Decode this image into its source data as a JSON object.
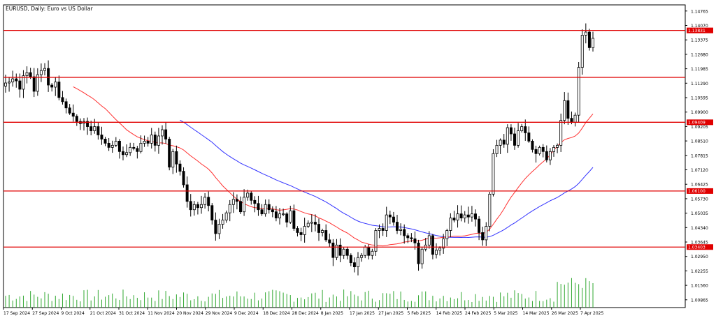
{
  "chart_data": {
    "type": "candlestick",
    "title": "EURUSD, Daily: Euro vs US Dollar",
    "y_ticks": [
      "1.14765",
      "1.14070",
      "1.13375",
      "1.12680",
      "1.11985",
      "1.11290",
      "1.10595",
      "1.09900",
      "1.09205",
      "1.08510",
      "1.07815",
      "1.07120",
      "1.06425",
      "1.05730",
      "1.05035",
      "1.04340",
      "1.03645",
      "1.02950",
      "1.02255",
      "1.01560",
      "1.00865"
    ],
    "ylim": [
      1.0049,
      1.1506
    ],
    "x_ticks": [
      "17 Sep 2024",
      "27 Sep 2024",
      "9 Oct 2024",
      "21 Oct 2024",
      "31 Oct 2024",
      "11 Nov 2024",
      "20 Nov 2024",
      "29 Nov 2024",
      "9 Dec 2024",
      "18 Dec 2024",
      "28 Dec 2024",
      "8 Jan 2025",
      "17 Jan 2025",
      "27 Jan 2025",
      "5 Feb 2025",
      "14 Feb 2025",
      "24 Feb 2025",
      "5 Mar 2025",
      "14 Mar 2025",
      "26 Mar 2025",
      "7 Apr 2025"
    ],
    "levels": [
      {
        "value": 1.13831,
        "label": "1.13831",
        "color": "#e00000"
      },
      {
        "value": 1.11575,
        "label": "",
        "color": "#e00000"
      },
      {
        "value": 1.09409,
        "label": "1.09409",
        "color": "#e00000"
      },
      {
        "value": 1.061,
        "label": "1.06100",
        "color": "#e00000"
      },
      {
        "value": 1.03403,
        "label": "1.03403",
        "color": "#e00000"
      }
    ],
    "ohlc_close": [
      1.113,
      1.1135,
      1.115,
      1.114,
      1.11,
      1.1165,
      1.118,
      1.116,
      1.109,
      1.117,
      1.119,
      1.12,
      1.112,
      1.111,
      1.1135,
      1.106,
      1.104,
      1.101,
      1.0985,
      1.097,
      1.0945,
      1.0935,
      1.0945,
      1.092,
      1.09,
      1.092,
      1.088,
      1.086,
      1.084,
      1.082,
      1.083,
      1.085,
      1.08,
      1.0785,
      1.0795,
      1.082,
      1.0815,
      1.08,
      1.084,
      1.085,
      1.084,
      1.088,
      1.083,
      1.0875,
      1.0905,
      1.086,
      1.0725,
      1.08,
      1.074,
      1.0705,
      1.064,
      1.056,
      1.052,
      1.0545,
      1.053,
      1.0545,
      1.058,
      1.054,
      1.047,
      1.0405,
      1.045,
      1.047,
      1.0505,
      1.0545,
      1.057,
      1.056,
      1.051,
      1.058,
      1.06,
      1.0565,
      1.055,
      1.052,
      1.05,
      1.0545,
      1.052,
      1.051,
      1.048,
      1.05,
      1.05,
      1.046,
      1.0515,
      1.043,
      1.041,
      1.04,
      1.044,
      1.0455,
      1.046,
      1.045,
      1.041,
      1.042,
      1.0375,
      1.036,
      1.029,
      1.035,
      1.03,
      1.033,
      1.03,
      1.0265,
      1.0245,
      1.029,
      1.03,
      1.034,
      1.03,
      1.032,
      1.042,
      1.043,
      1.042,
      1.0495,
      1.0485,
      1.046,
      1.042,
      1.0425,
      1.0395,
      1.0385,
      1.038,
      1.036,
      1.026,
      1.033,
      1.035,
      1.0395,
      1.0305,
      1.0325,
      1.0335,
      1.038,
      1.042,
      1.048,
      1.047,
      1.05,
      1.048,
      1.0495,
      1.0485,
      1.05,
      1.0475,
      1.041,
      1.0375,
      1.044,
      1.0595,
      1.079,
      1.083,
      1.0855,
      1.0835,
      1.0915,
      1.0885,
      1.083,
      1.09,
      1.092,
      1.089,
      1.085,
      1.081,
      1.079,
      1.082,
      1.08,
      1.076,
      1.08,
      1.082,
      1.083,
      1.095,
      1.1045,
      1.096,
      1.094,
      1.0975,
      1.1205,
      1.136,
      1.1375,
      1.13,
      1.1345
    ]
  }
}
